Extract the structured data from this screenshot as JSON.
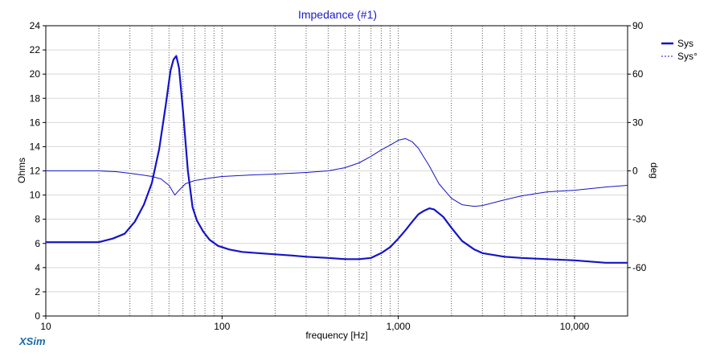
{
  "chart_data": {
    "type": "line",
    "title": "Impedance (#1)",
    "xlabel": "frequency [Hz]",
    "ylabel": "Ohms",
    "y2label": "deg",
    "xscale": "log",
    "xlim": [
      10,
      20000
    ],
    "ylim": [
      0,
      24
    ],
    "y2lim": [
      -90,
      90
    ],
    "xticks": [
      10,
      100,
      1000,
      10000
    ],
    "xtick_labels": [
      "10",
      "100",
      "1,000",
      "10,000"
    ],
    "yticks": [
      0,
      2,
      4,
      6,
      8,
      10,
      12,
      14,
      16,
      18,
      20,
      22,
      24
    ],
    "y2ticks": [
      90,
      60,
      30,
      0,
      -30,
      -60
    ],
    "grid": true,
    "legend_position": "top-right",
    "series": [
      {
        "name": "Sys",
        "axis": "left",
        "style": "solid",
        "color": "#1414c8",
        "points": [
          [
            10,
            6.1
          ],
          [
            15,
            6.1
          ],
          [
            20,
            6.1
          ],
          [
            24,
            6.4
          ],
          [
            28,
            6.8
          ],
          [
            32,
            7.8
          ],
          [
            36,
            9.2
          ],
          [
            40,
            11.0
          ],
          [
            44,
            13.8
          ],
          [
            48,
            17.5
          ],
          [
            51,
            20.3
          ],
          [
            53,
            21.2
          ],
          [
            55,
            21.5
          ],
          [
            57,
            20.5
          ],
          [
            60,
            17.0
          ],
          [
            64,
            12.0
          ],
          [
            68,
            9.0
          ],
          [
            72,
            7.9
          ],
          [
            78,
            7.0
          ],
          [
            85,
            6.3
          ],
          [
            95,
            5.8
          ],
          [
            110,
            5.5
          ],
          [
            130,
            5.3
          ],
          [
            160,
            5.2
          ],
          [
            200,
            5.1
          ],
          [
            250,
            5.0
          ],
          [
            300,
            4.9
          ],
          [
            400,
            4.8
          ],
          [
            500,
            4.7
          ],
          [
            600,
            4.7
          ],
          [
            700,
            4.8
          ],
          [
            800,
            5.2
          ],
          [
            900,
            5.7
          ],
          [
            1000,
            6.4
          ],
          [
            1100,
            7.1
          ],
          [
            1200,
            7.8
          ],
          [
            1300,
            8.4
          ],
          [
            1400,
            8.7
          ],
          [
            1500,
            8.9
          ],
          [
            1600,
            8.8
          ],
          [
            1800,
            8.2
          ],
          [
            2000,
            7.3
          ],
          [
            2300,
            6.2
          ],
          [
            2700,
            5.5
          ],
          [
            3000,
            5.2
          ],
          [
            4000,
            4.9
          ],
          [
            5000,
            4.8
          ],
          [
            7000,
            4.7
          ],
          [
            10000,
            4.6
          ],
          [
            15000,
            4.4
          ],
          [
            20000,
            4.4
          ]
        ]
      },
      {
        "name": "Sys°",
        "axis": "right",
        "style": "dashed",
        "color": "#1414c8",
        "points": [
          [
            10,
            0
          ],
          [
            15,
            0
          ],
          [
            20,
            0
          ],
          [
            25,
            -0.5
          ],
          [
            30,
            -1.5
          ],
          [
            35,
            -2.5
          ],
          [
            40,
            -3.5
          ],
          [
            45,
            -5
          ],
          [
            50,
            -9
          ],
          [
            54,
            -15
          ],
          [
            57,
            -12
          ],
          [
            62,
            -8
          ],
          [
            70,
            -6
          ],
          [
            85,
            -4.5
          ],
          [
            100,
            -3.5
          ],
          [
            150,
            -2.5
          ],
          [
            200,
            -2
          ],
          [
            300,
            -1
          ],
          [
            400,
            0
          ],
          [
            500,
            2
          ],
          [
            600,
            5
          ],
          [
            700,
            9
          ],
          [
            800,
            13
          ],
          [
            900,
            16
          ],
          [
            1000,
            19
          ],
          [
            1100,
            20
          ],
          [
            1200,
            18
          ],
          [
            1300,
            14
          ],
          [
            1500,
            3
          ],
          [
            1700,
            -8
          ],
          [
            2000,
            -17
          ],
          [
            2300,
            -21
          ],
          [
            2700,
            -22
          ],
          [
            3000,
            -21.5
          ],
          [
            4000,
            -18
          ],
          [
            5000,
            -15.5
          ],
          [
            7000,
            -13
          ],
          [
            10000,
            -12
          ],
          [
            15000,
            -10
          ],
          [
            20000,
            -9
          ]
        ]
      }
    ]
  },
  "brand": "XSim"
}
